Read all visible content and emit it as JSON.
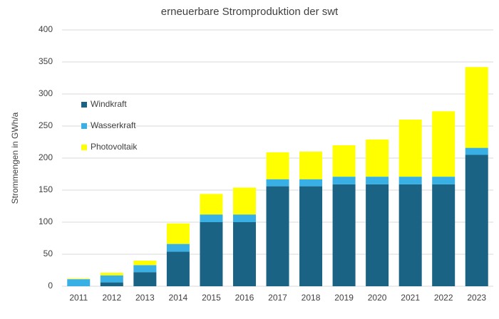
{
  "chart_data": {
    "type": "stacked_bar",
    "title": "erneuerbare Stromproduktion der swt",
    "y_label": "Strommengen in GWh/a",
    "categories": [
      "2011",
      "2012",
      "2013",
      "2014",
      "2015",
      "2016",
      "2017",
      "2018",
      "2019",
      "2020",
      "2021",
      "2022",
      "2023"
    ],
    "series": [
      {
        "name": "Windkraft",
        "color": "#1a6384",
        "values": [
          0,
          6,
          22,
          54,
          100,
          100,
          156,
          156,
          159,
          159,
          159,
          159,
          205
        ]
      },
      {
        "name": "Wasserkraft",
        "color": "#38b0e6",
        "values": [
          11,
          11,
          11,
          12,
          12,
          12,
          11,
          11,
          12,
          12,
          12,
          12,
          11
        ]
      },
      {
        "name": "Photovoltaik",
        "color": "#ffff00",
        "values": [
          1,
          4,
          7,
          32,
          32,
          42,
          42,
          43,
          49,
          58,
          89,
          102,
          126
        ]
      }
    ],
    "ylim": [
      0,
      400
    ],
    "yticks": [
      0,
      50,
      100,
      150,
      200,
      250,
      300,
      350,
      400
    ],
    "grid": true,
    "legend": "upper-left"
  }
}
